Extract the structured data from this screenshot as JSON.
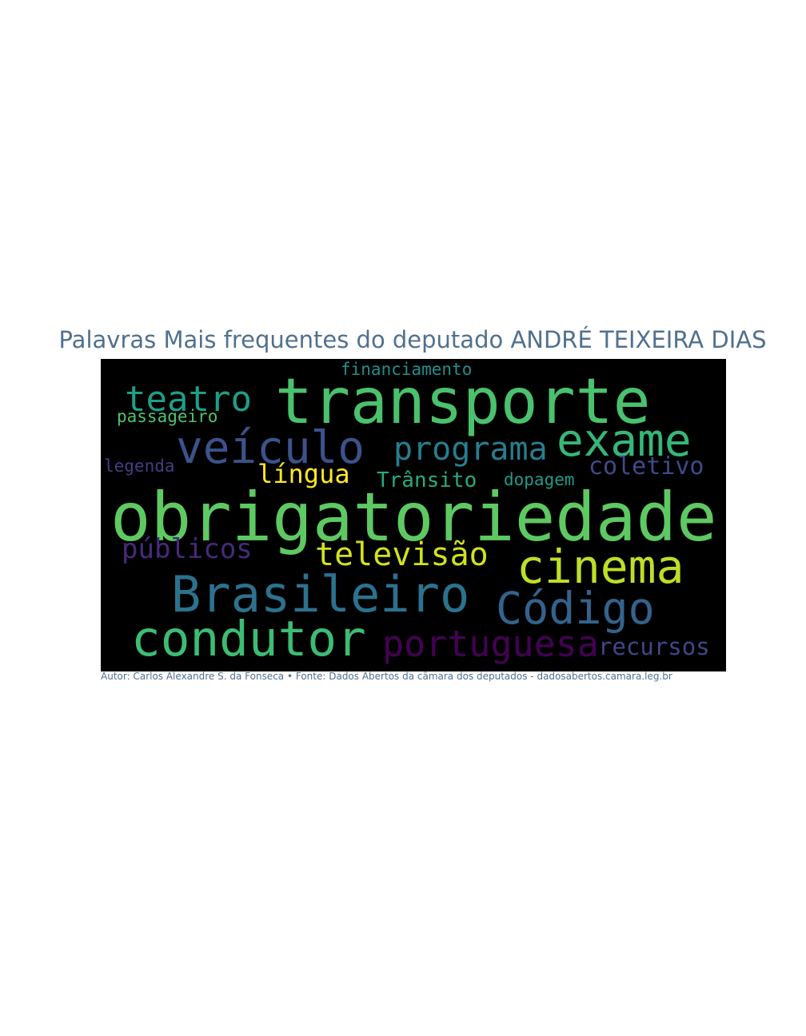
{
  "title": "Palavras Mais frequentes do deputado ANDRÉ TEIXEIRA DIAS",
  "credit": "Autor: Carlos Alexandre S. da Fonseca • Fonte: Dados Abertos da câmara dos deputados - dadosabertos.camara.leg.br",
  "words": [
    {
      "text": "obrigatoriedade",
      "color": "#5ec962"
    },
    {
      "text": "transporte",
      "color": "#4ac16d"
    },
    {
      "text": "veículo",
      "color": "#3b528b"
    },
    {
      "text": "exame",
      "color": "#35b779"
    },
    {
      "text": "Brasileiro",
      "color": "#2c728e"
    },
    {
      "text": "condutor",
      "color": "#3dbc74"
    },
    {
      "text": "cinema",
      "color": "#bddf26"
    },
    {
      "text": "Código",
      "color": "#33638d"
    },
    {
      "text": "portuguesa",
      "color": "#440154"
    },
    {
      "text": "teatro",
      "color": "#1f9e89"
    },
    {
      "text": "programa",
      "color": "#287d8e"
    },
    {
      "text": "televisão",
      "color": "#d2e21b"
    },
    {
      "text": "públicos",
      "color": "#472a7a"
    },
    {
      "text": "língua",
      "color": "#fde725"
    },
    {
      "text": "coletivo",
      "color": "#3e4a89"
    },
    {
      "text": "recursos",
      "color": "#3f4788"
    },
    {
      "text": "Trânsito",
      "color": "#25ab82"
    },
    {
      "text": "financiamento",
      "color": "#218f8d"
    },
    {
      "text": "passageiro",
      "color": "#50c46a"
    },
    {
      "text": "legenda",
      "color": "#433e85"
    },
    {
      "text": "dopagem",
      "color": "#1e9c89"
    }
  ]
}
